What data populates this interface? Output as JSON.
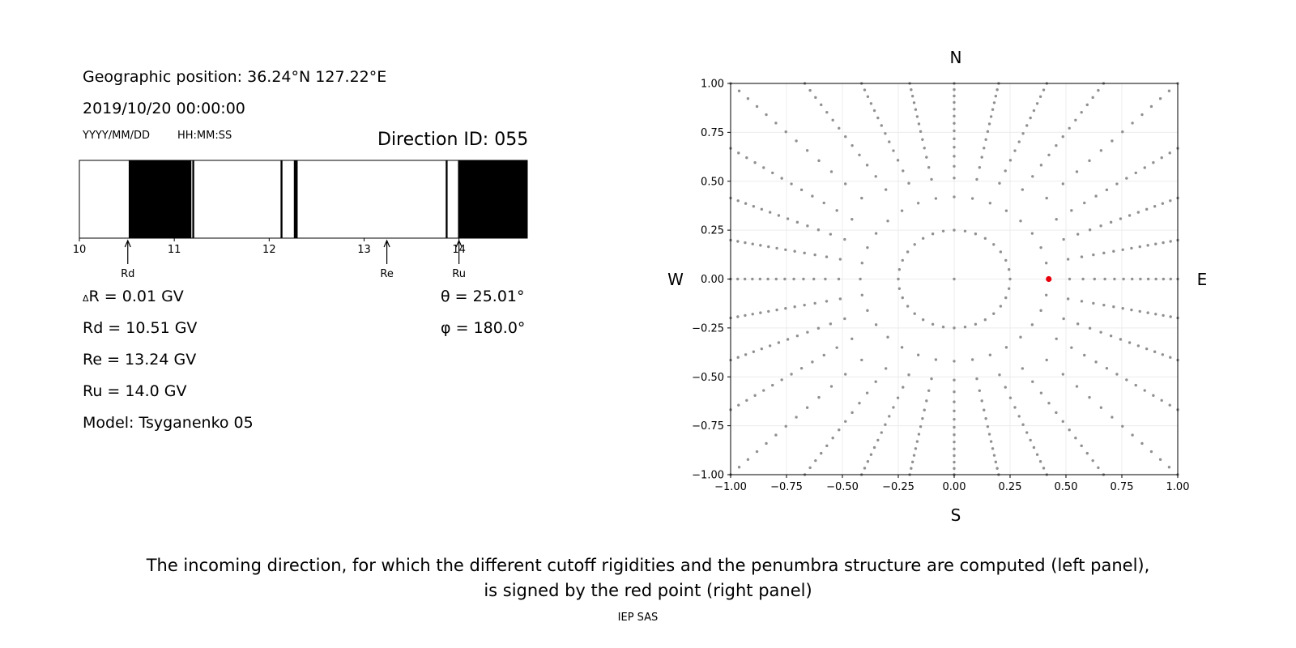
{
  "header": {
    "geo_position": "Geographic position: 36.24°N 127.22°E",
    "datetime": "2019/10/20 00:00:00",
    "date_format": "YYYY/MM/DD",
    "time_format": "HH:MM:SS",
    "direction_id": "Direction ID: 055"
  },
  "results": {
    "delta_r": "= 0.01 GV",
    "delta_r_symbol": "Δ",
    "delta_r_letter": "R",
    "rd": "Rd = 10.51 GV",
    "re": "Re = 13.24 GV",
    "ru": "Ru = 14.0 GV",
    "model": "Model: Tsyganenko 05",
    "theta": "θ = 25.01°",
    "phi": "φ = 180.0°"
  },
  "caption": {
    "line1": "The incoming direction, for which the different cutoff rigidities and the penumbra structure are computed (left panel),",
    "line2": "is signed by the red point (right panel)",
    "credit": "IEP SAS"
  },
  "chart_data": [
    {
      "type": "penumbra-bar",
      "xlim": [
        10,
        14.72
      ],
      "xticks": [
        10,
        11,
        12,
        13,
        14
      ],
      "xticklabels": [
        "10",
        "11",
        "12",
        "13",
        "14"
      ],
      "forbidden_bands": [
        [
          10.52,
          11.18
        ],
        [
          11.19,
          11.21
        ],
        [
          12.12,
          12.14
        ],
        [
          12.26,
          12.3
        ],
        [
          13.86,
          13.88
        ],
        [
          13.99,
          14.72
        ]
      ],
      "markers": [
        {
          "label": "Rd",
          "value": 10.51
        },
        {
          "label": "Re",
          "value": 13.24
        },
        {
          "label": "Ru",
          "value": 14.0
        }
      ],
      "colors": {
        "forbidden": "#000000",
        "allowed": "#ffffff"
      }
    },
    {
      "type": "scatter",
      "xlim": [
        -1,
        1
      ],
      "ylim": [
        -1,
        1
      ],
      "xticks": [
        -1,
        -0.75,
        -0.5,
        -0.25,
        0,
        0.25,
        0.5,
        0.75,
        1
      ],
      "xticklabels": [
        "−1.00",
        "−0.75",
        "−0.50",
        "−0.25",
        "0.00",
        "0.25",
        "0.50",
        "0.75",
        "1.00"
      ],
      "yticks": [
        -1,
        -0.75,
        -0.5,
        -0.25,
        0,
        0.25,
        0.5,
        0.75,
        1
      ],
      "yticklabels": [
        "−1.00",
        "−0.75",
        "−0.50",
        "−0.25",
        "0.00",
        "0.25",
        "0.50",
        "0.75",
        "1.00"
      ],
      "grid": true,
      "compass": {
        "north": "N",
        "south": "S",
        "east": "E",
        "west": "W"
      },
      "grid_pattern": {
        "center": [
          0,
          0
        ],
        "inner_ring": {
          "radius": 0.25,
          "count": 32
        },
        "radial_spokes": {
          "count": 32,
          "r_min": 0.42,
          "r_max_axis": 1.0
        },
        "spoke_point_count": 14
      },
      "highlight_point": {
        "x": 0.423,
        "y": 0.0,
        "color": "#e8000b"
      },
      "point_color": "#909090"
    }
  ]
}
